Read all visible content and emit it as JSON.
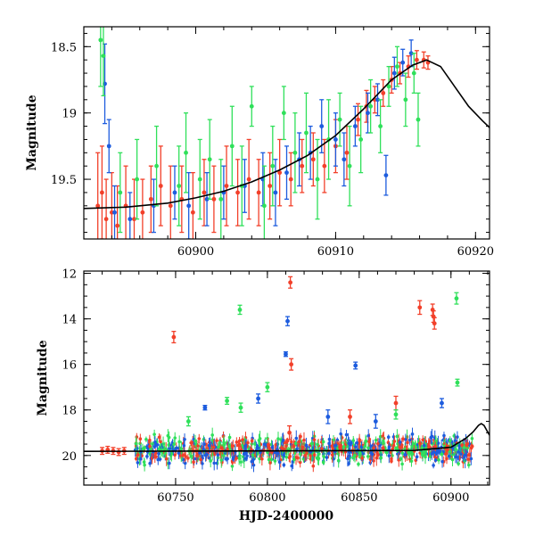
{
  "chart_data": [
    {
      "type": "scatter",
      "panel": "top",
      "ylabel": "Magnitude",
      "xlabel": "",
      "xlim": [
        60892,
        60921
      ],
      "ylim": [
        19.95,
        18.35
      ],
      "y_inverted": true,
      "x_ticks": [
        60900,
        60910,
        60920
      ],
      "y_ticks": [
        18.5,
        19,
        19.5
      ],
      "series": [
        {
          "color": "#f2402a",
          "points": [
            [
              60893.0,
              19.7,
              0.4
            ],
            [
              60893.3,
              19.6,
              0.35
            ],
            [
              60893.6,
              19.8,
              0.3
            ],
            [
              60894.0,
              19.75,
              0.3
            ],
            [
              60894.4,
              19.85,
              0.3
            ],
            [
              60895.0,
              19.7,
              0.3
            ],
            [
              60895.6,
              19.8,
              0.3
            ],
            [
              60896.2,
              19.75,
              0.25
            ],
            [
              60896.8,
              19.65,
              0.25
            ],
            [
              60897.5,
              19.55,
              0.3
            ],
            [
              60898.2,
              19.7,
              0.3
            ],
            [
              60899.0,
              19.65,
              0.25
            ],
            [
              60899.8,
              19.75,
              0.3
            ],
            [
              60900.6,
              19.6,
              0.25
            ],
            [
              60901.3,
              19.65,
              0.25
            ],
            [
              60902.2,
              19.55,
              0.3
            ],
            [
              60903.0,
              19.6,
              0.25
            ],
            [
              60903.8,
              19.5,
              0.3
            ],
            [
              60904.5,
              19.6,
              0.25
            ],
            [
              60905.3,
              19.55,
              0.25
            ],
            [
              60906.0,
              19.45,
              0.25
            ],
            [
              60906.8,
              19.5,
              0.2
            ],
            [
              60907.6,
              19.4,
              0.2
            ],
            [
              60908.4,
              19.35,
              0.2
            ],
            [
              60909.2,
              19.4,
              0.2
            ],
            [
              60910.0,
              19.25,
              0.2
            ],
            [
              60910.8,
              19.3,
              0.2
            ],
            [
              60911.6,
              19.05,
              0.12
            ],
            [
              60912.2,
              18.95,
              0.12
            ],
            [
              60912.8,
              18.9,
              0.1
            ],
            [
              60913.4,
              18.85,
              0.1
            ],
            [
              60914.0,
              18.75,
              0.1
            ],
            [
              60914.6,
              18.7,
              0.08
            ],
            [
              60915.2,
              18.65,
              0.08
            ],
            [
              60915.8,
              18.6,
              0.07
            ],
            [
              60916.3,
              18.6,
              0.06
            ],
            [
              60916.6,
              18.62,
              0.05
            ]
          ]
        },
        {
          "color": "#1d5cde",
          "points": [
            [
              60893.5,
              18.78,
              0.3
            ],
            [
              60893.8,
              19.25,
              0.2
            ],
            [
              60894.2,
              19.75,
              0.2
            ],
            [
              60895.3,
              19.8,
              0.2
            ],
            [
              60897.0,
              19.7,
              0.2
            ],
            [
              60898.5,
              19.6,
              0.2
            ],
            [
              60899.5,
              19.7,
              0.25
            ],
            [
              60900.8,
              19.65,
              0.2
            ],
            [
              60902.0,
              19.6,
              0.2
            ],
            [
              60903.5,
              19.55,
              0.2
            ],
            [
              60904.8,
              19.5,
              0.2
            ],
            [
              60905.7,
              19.6,
              0.25
            ],
            [
              60906.5,
              19.45,
              0.2
            ],
            [
              60907.4,
              19.35,
              0.2
            ],
            [
              60908.2,
              19.3,
              0.2
            ],
            [
              60909.0,
              19.1,
              0.2
            ],
            [
              60910.0,
              19.2,
              0.2
            ],
            [
              60910.6,
              19.35,
              0.2
            ],
            [
              60911.4,
              19.1,
              0.15
            ],
            [
              60912.3,
              19.0,
              0.15
            ],
            [
              60913.0,
              18.9,
              0.12
            ],
            [
              60913.6,
              19.47,
              0.15
            ],
            [
              60914.2,
              18.7,
              0.12
            ],
            [
              60914.8,
              18.62,
              0.1
            ],
            [
              60915.4,
              18.55,
              0.1
            ]
          ]
        },
        {
          "color": "#2fe05a",
          "points": [
            [
              60893.2,
              18.45,
              0.35
            ],
            [
              60893.4,
              18.57,
              0.3
            ],
            [
              60894.6,
              19.6,
              0.3
            ],
            [
              60895.8,
              19.5,
              0.3
            ],
            [
              60897.2,
              19.4,
              0.3
            ],
            [
              60898.8,
              19.55,
              0.3
            ],
            [
              60899.3,
              19.3,
              0.3
            ],
            [
              60900.3,
              19.5,
              0.3
            ],
            [
              60901.0,
              19.35,
              0.3
            ],
            [
              60901.8,
              19.65,
              0.3
            ],
            [
              60902.6,
              19.25,
              0.3
            ],
            [
              60903.3,
              19.55,
              0.3
            ],
            [
              60904.0,
              18.95,
              0.15
            ],
            [
              60904.9,
              19.7,
              0.3
            ],
            [
              60905.5,
              19.4,
              0.3
            ],
            [
              60906.3,
              19.0,
              0.2
            ],
            [
              60907.1,
              19.3,
              0.3
            ],
            [
              60907.9,
              19.15,
              0.3
            ],
            [
              60908.7,
              19.5,
              0.3
            ],
            [
              60909.5,
              19.2,
              0.3
            ],
            [
              60910.3,
              19.05,
              0.2
            ],
            [
              60911.0,
              19.4,
              0.3
            ],
            [
              60911.8,
              19.2,
              0.25
            ],
            [
              60912.5,
              18.95,
              0.2
            ],
            [
              60913.2,
              19.1,
              0.2
            ],
            [
              60913.8,
              18.8,
              0.15
            ],
            [
              60914.4,
              18.65,
              0.15
            ],
            [
              60915.0,
              18.9,
              0.2
            ],
            [
              60915.6,
              18.7,
              0.15
            ],
            [
              60915.9,
              19.05,
              0.2
            ]
          ]
        }
      ],
      "model_curve": [
        [
          60892,
          19.72
        ],
        [
          60895,
          19.71
        ],
        [
          60898,
          19.68
        ],
        [
          60900,
          19.64
        ],
        [
          60902,
          19.59
        ],
        [
          60904,
          19.52
        ],
        [
          60906,
          19.43
        ],
        [
          60908,
          19.32
        ],
        [
          60910,
          19.17
        ],
        [
          60912,
          18.97
        ],
        [
          60914,
          18.75
        ],
        [
          60915.5,
          18.64
        ],
        [
          60916.5,
          18.6
        ],
        [
          60917.5,
          18.65
        ],
        [
          60918.5,
          18.8
        ],
        [
          60919.5,
          18.95
        ],
        [
          60920.5,
          19.06
        ],
        [
          60921,
          19.11
        ]
      ]
    },
    {
      "type": "scatter",
      "panel": "bottom",
      "ylabel": "Magnitude",
      "xlabel": "HJD-2400000",
      "xlim": [
        60700,
        60921
      ],
      "ylim": [
        21.3,
        11.9
      ],
      "y_inverted": true,
      "x_ticks": [
        60750,
        60800,
        60850,
        60900
      ],
      "y_ticks": [
        12,
        14,
        16,
        18,
        20
      ],
      "series": [
        {
          "color": "#f2402a",
          "points": [
            [
              60710,
              19.8,
              0.15
            ],
            [
              60713,
              19.75,
              0.15
            ],
            [
              60716,
              19.8,
              0.15
            ],
            [
              60719,
              19.85,
              0.15
            ],
            [
              60722,
              19.8,
              0.15
            ],
            [
              60749,
              14.8,
              0.25
            ],
            [
              60812.5,
              12.4,
              0.25
            ],
            [
              60813,
              16.0,
              0.25
            ],
            [
              60812,
              19.0,
              0.3
            ],
            [
              60845,
              18.3,
              0.3
            ],
            [
              60870,
              17.7,
              0.3
            ],
            [
              60883,
              13.5,
              0.3
            ],
            [
              60890,
              13.6,
              0.25
            ],
            [
              60890.5,
              13.9,
              0.25
            ],
            [
              60891,
              14.2,
              0.25
            ]
          ]
        },
        {
          "color": "#1d5cde",
          "points": [
            [
              60766,
              17.9,
              0.1
            ],
            [
              60795,
              17.5,
              0.2
            ],
            [
              60810,
              15.55,
              0.1
            ],
            [
              60811,
              14.1,
              0.2
            ],
            [
              60833,
              18.3,
              0.3
            ],
            [
              60848,
              16.05,
              0.15
            ],
            [
              60859,
              18.5,
              0.3
            ],
            [
              60895,
              17.7,
              0.2
            ]
          ]
        },
        {
          "color": "#2fe05a",
          "points": [
            [
              60757,
              18.5,
              0.2
            ],
            [
              60778,
              17.6,
              0.15
            ],
            [
              60785,
              13.6,
              0.2
            ],
            [
              60785.5,
              17.9,
              0.2
            ],
            [
              60800,
              17.0,
              0.2
            ],
            [
              60903,
              13.1,
              0.25
            ],
            [
              60903.5,
              16.8,
              0.15
            ],
            [
              60870,
              18.2,
              0.2
            ]
          ]
        }
      ],
      "dense_baseline": {
        "x_range": [
          60728,
          60912
        ],
        "y_center": 19.75,
        "y_spread": 0.55
      },
      "model_curve": [
        [
          60700,
          19.82
        ],
        [
          60800,
          19.8
        ],
        [
          60880,
          19.78
        ],
        [
          60900,
          19.64
        ],
        [
          60908,
          19.25
        ],
        [
          60912,
          18.97
        ],
        [
          60915,
          18.68
        ],
        [
          60916.5,
          18.6
        ],
        [
          60918,
          18.68
        ],
        [
          60921,
          19.11
        ]
      ]
    }
  ]
}
